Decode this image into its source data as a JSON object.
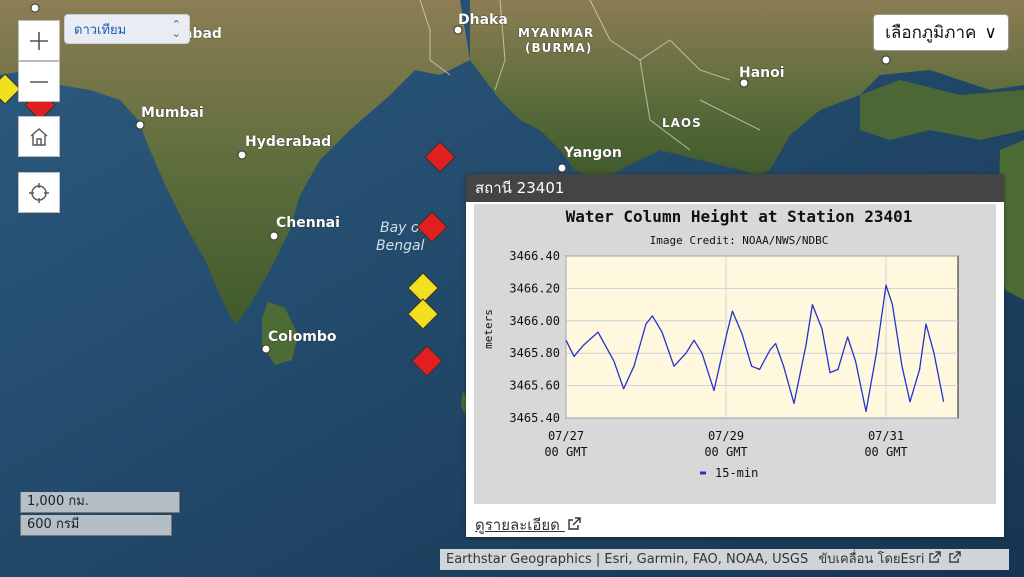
{
  "basemap": {
    "selected": "ดาวเทียม"
  },
  "region_button": {
    "label": "เลือกภูมิภาค",
    "chevron": "∨"
  },
  "zoom": {
    "in_icon": "plus-icon",
    "out_icon": "minus-icon"
  },
  "home": {
    "icon": "home-icon"
  },
  "locate": {
    "icon": "crosshair-icon"
  },
  "places": {
    "dhaka": "Dhaka",
    "myanmar": "MYANMAR",
    "burma": "(BURMA)",
    "hanoi": "Hanoi",
    "mumbai": "Mumbai",
    "hyderabad": "Hyderabad",
    "laos": "LAOS",
    "yangon": "Yangon",
    "chennai": "Chennai",
    "bay1": "Bay of",
    "bay2": "Bengal",
    "colombo": "Colombo",
    "abad": "abad"
  },
  "popup": {
    "title": "สถานี 23401",
    "link": "ดูรายละเอียด"
  },
  "chart_data": {
    "type": "line",
    "title": "Water Column Height at Station 23401",
    "subtitle": "Image Credit: NOAA/NWS/NDBC",
    "ylabel": "meters",
    "ylim": [
      3465.4,
      3466.4
    ],
    "yticks": [
      "3466.40",
      "3466.20",
      "3466.00",
      "3465.80",
      "3465.60",
      "3465.40"
    ],
    "xticks": [
      {
        "date": "07/27",
        "time": "00 GMT",
        "day": 0
      },
      {
        "date": "07/29",
        "time": "00 GMT",
        "day": 2
      },
      {
        "date": "07/31",
        "time": "00 GMT",
        "day": 4
      }
    ],
    "legend": "15-min",
    "series": [
      {
        "name": "15-min",
        "color": "#2233cc",
        "points": [
          [
            0.0,
            3465.88
          ],
          [
            0.1,
            3465.78
          ],
          [
            0.22,
            3465.85
          ],
          [
            0.4,
            3465.93
          ],
          [
            0.6,
            3465.75
          ],
          [
            0.72,
            3465.58
          ],
          [
            0.85,
            3465.72
          ],
          [
            1.0,
            3465.98
          ],
          [
            1.08,
            3466.03
          ],
          [
            1.2,
            3465.93
          ],
          [
            1.35,
            3465.72
          ],
          [
            1.5,
            3465.8
          ],
          [
            1.6,
            3465.88
          ],
          [
            1.7,
            3465.8
          ],
          [
            1.85,
            3465.57
          ],
          [
            2.0,
            3465.9
          ],
          [
            2.08,
            3466.06
          ],
          [
            2.2,
            3465.92
          ],
          [
            2.32,
            3465.72
          ],
          [
            2.42,
            3465.7
          ],
          [
            2.55,
            3465.82
          ],
          [
            2.62,
            3465.86
          ],
          [
            2.72,
            3465.72
          ],
          [
            2.85,
            3465.49
          ],
          [
            3.0,
            3465.85
          ],
          [
            3.08,
            3466.1
          ],
          [
            3.2,
            3465.95
          ],
          [
            3.3,
            3465.68
          ],
          [
            3.4,
            3465.7
          ],
          [
            3.52,
            3465.9
          ],
          [
            3.62,
            3465.75
          ],
          [
            3.75,
            3465.44
          ],
          [
            3.88,
            3465.8
          ],
          [
            4.0,
            3466.22
          ],
          [
            4.08,
            3466.1
          ],
          [
            4.2,
            3465.72
          ],
          [
            4.3,
            3465.5
          ],
          [
            4.42,
            3465.7
          ],
          [
            4.5,
            3465.98
          ],
          [
            4.6,
            3465.8
          ],
          [
            4.72,
            3465.5
          ]
        ]
      }
    ]
  },
  "scale": {
    "km": "1,000 กม.",
    "mi": "600 กรมี"
  },
  "attribution": {
    "text": "Earthstar Geographics | Esri, Garmin, FAO, NOAA, USGS",
    "powered": "ขับเคลื่อน โดยEsri"
  },
  "markers": [
    {
      "color": "#e02020",
      "status": "red"
    },
    {
      "color": "#e02020",
      "status": "red"
    },
    {
      "color": "#f0e020",
      "status": "yellow"
    },
    {
      "color": "#f0e020",
      "status": "yellow"
    },
    {
      "color": "#e02020",
      "status": "red"
    },
    {
      "color": "#f0e020",
      "status": "yellow"
    },
    {
      "color": "#e02020",
      "status": "red"
    }
  ]
}
